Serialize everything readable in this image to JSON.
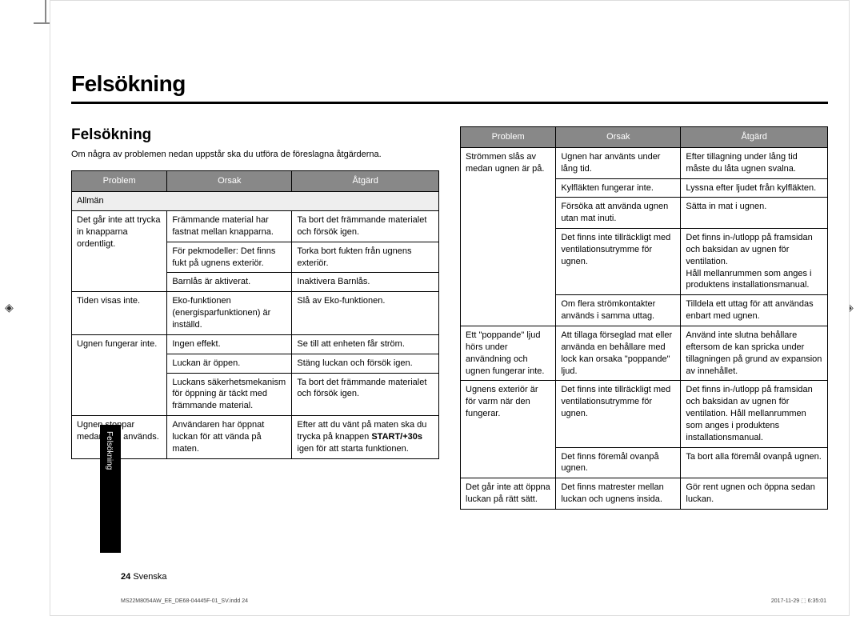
{
  "page": {
    "main_title": "Felsökning",
    "sub_title": "Felsökning",
    "intro": "Om några av problemen nedan uppstår ska du utföra de föreslagna åtgärderna.",
    "side_tab": "Felsökning",
    "page_number": "24",
    "language": "Svenska",
    "footer_file": "MS22M8054AW_EE_DE68-04445F-01_SV.indd   24",
    "footer_date": "2017-11-29   ⬚ 6:35:01"
  },
  "table_left": {
    "headers": [
      "Problem",
      "Orsak",
      "Åtgärd"
    ],
    "section": "Allmän",
    "rows": [
      {
        "problem": "Det går inte att trycka in knapparna ordentligt.",
        "cause": "Främmande material har fastnat mellan knapparna.",
        "action": "Ta bort det främmande materialet och försök igen."
      },
      {
        "problem": "",
        "cause": "För pekmodeller: Det finns fukt på ugnens exteriör.",
        "action": "Torka bort fukten från ugnens exteriör."
      },
      {
        "problem": "",
        "cause": "Barnlås är aktiverat.",
        "action": "Inaktivera Barnlås."
      },
      {
        "problem": "Tiden visas inte.",
        "cause": "Eko-funktionen (energisparfunktionen) är inställd.",
        "action": "Slå av Eko-funktionen."
      },
      {
        "problem": "Ugnen fungerar inte.",
        "cause": "Ingen effekt.",
        "action": "Se till att enheten får ström."
      },
      {
        "problem": "",
        "cause": "Luckan är öppen.",
        "action": "Stäng luckan och försök igen."
      },
      {
        "problem": "",
        "cause": "Luckans säkerhetsmekanism för öppning är täckt med främmande material.",
        "action": "Ta bort det främmande materialet och försök igen."
      },
      {
        "problem": "Ugnen stoppar medan den används.",
        "cause": "Användaren har öppnat luckan för att vända på maten.",
        "action_html": "Efter att du vänt på maten ska du trycka på knappen <b>START/+30s</b> igen för att starta funktionen."
      }
    ]
  },
  "table_right": {
    "headers": [
      "Problem",
      "Orsak",
      "Åtgärd"
    ],
    "rows": [
      {
        "problem": "Strömmen slås av medan ugnen är på.",
        "cause": "Ugnen har använts under lång tid.",
        "action": "Efter tillagning under lång tid måste du låta ugnen svalna."
      },
      {
        "problem": "",
        "cause": "Kylfläkten fungerar inte.",
        "action": "Lyssna efter ljudet från kylfläkten."
      },
      {
        "problem": "",
        "cause": "Försöka att använda ugnen utan mat inuti.",
        "action": "Sätta in mat i ugnen."
      },
      {
        "problem": "",
        "cause": "Det finns inte tillräckligt med ventilationsutrymme för ugnen.",
        "action": "Det finns in-/utlopp på framsidan och baksidan av ugnen för ventilation.\nHåll mellanrummen som anges i produktens installationsmanual."
      },
      {
        "problem": "",
        "cause": "Om flera strömkontakter används i samma uttag.",
        "action": "Tilldela ett uttag för att användas enbart med ugnen."
      },
      {
        "problem": "Ett \"poppande\" ljud hörs under användning och ugnen fungerar inte.",
        "cause": "Att tillaga förseglad mat eller använda en behållare med lock kan orsaka \"poppande\" ljud.",
        "action": "Använd inte slutna behållare eftersom de kan spricka under tillagningen på grund av expansion av innehållet."
      },
      {
        "problem": "Ugnens exteriör är för varm när den fungerar.",
        "cause": "Det finns inte tillräckligt med ventilationsutrymme för ugnen.",
        "action": "Det finns in-/utlopp på framsidan och baksidan av ugnen för ventilation. Håll mellanrummen som anges i produktens installationsmanual."
      },
      {
        "problem": "",
        "cause": "Det finns föremål ovanpå ugnen.",
        "action": "Ta bort alla föremål ovanpå ugnen."
      },
      {
        "problem": "Det går inte att öppna luckan på rätt sätt.",
        "cause": "Det finns matrester mellan luckan och ugnens insida.",
        "action": "Gör rent ugnen och öppna sedan luckan."
      }
    ]
  }
}
